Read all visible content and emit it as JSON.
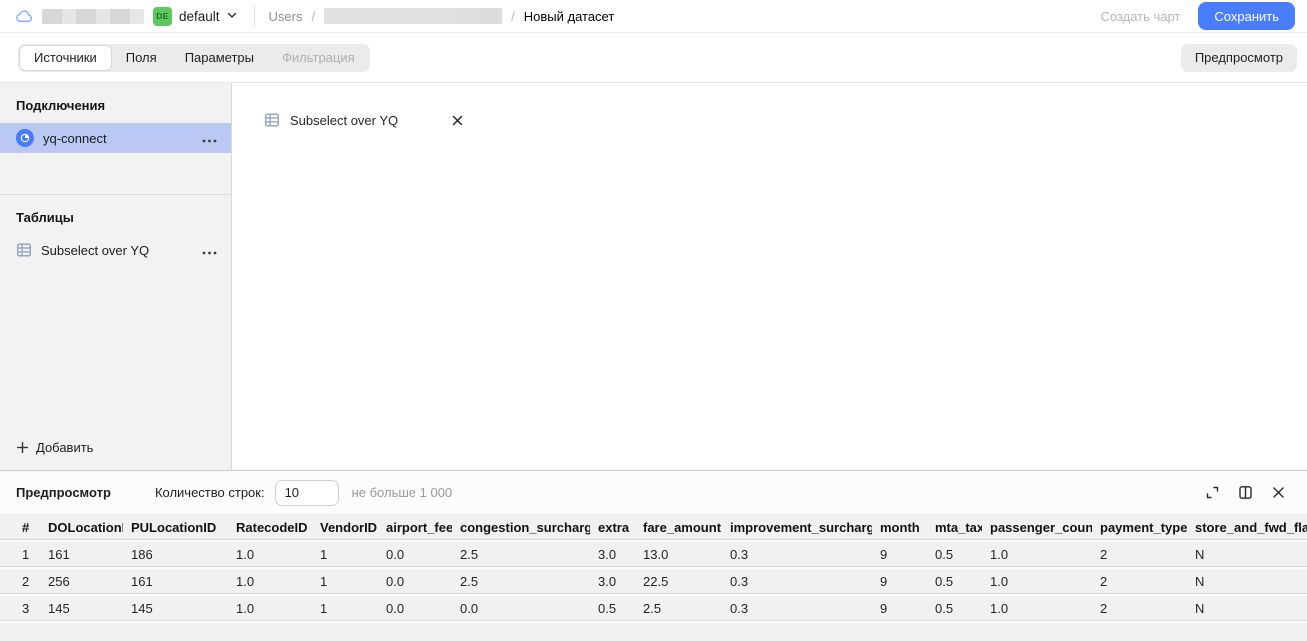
{
  "topbar": {
    "workspace": {
      "env_badge": "DE",
      "folder": "default"
    },
    "breadcrumb": {
      "root": "Users",
      "separator": "/",
      "current": "Новый датасет"
    },
    "actions": {
      "create_chart": "Создать чарт",
      "save": "Сохранить"
    }
  },
  "tabs": {
    "sources": "Источники",
    "fields": "Поля",
    "parameters": "Параметры",
    "filtering": "Фильтрация",
    "active": "Источники",
    "preview_toggle": "Предпросмотр"
  },
  "sidebar": {
    "connections_title": "Подключения",
    "connections": [
      {
        "name": "yq-connect",
        "selected": true
      }
    ],
    "tables_title": "Таблицы",
    "tables": [
      {
        "name": "Subselect over YQ"
      }
    ],
    "add_label": "Добавить"
  },
  "canvas": {
    "source_chip": "Subselect over YQ"
  },
  "preview": {
    "title": "Предпросмотр",
    "rows_label": "Количество строк:",
    "rows_value": "10",
    "rows_hint": "не больше 1 000",
    "table": {
      "columns": [
        "#",
        "DOLocationID",
        "PULocationID",
        "RatecodeID",
        "VendorID",
        "airport_fee",
        "congestion_surcharge",
        "extra",
        "fare_amount",
        "improvement_surcharge",
        "month",
        "mta_tax",
        "passenger_count",
        "payment_type",
        "store_and_fwd_flag"
      ],
      "rows": [
        [
          "1",
          "161",
          "186",
          "1.0",
          "1",
          "0.0",
          "2.5",
          "3.0",
          "13.0",
          "0.3",
          "9",
          "0.5",
          "1.0",
          "2",
          "N"
        ],
        [
          "2",
          "256",
          "161",
          "1.0",
          "1",
          "0.0",
          "2.5",
          "3.0",
          "22.5",
          "0.3",
          "9",
          "0.5",
          "1.0",
          "2",
          "N"
        ],
        [
          "3",
          "145",
          "145",
          "1.0",
          "1",
          "0.0",
          "0.0",
          "0.5",
          "2.5",
          "0.3",
          "9",
          "0.5",
          "1.0",
          "2",
          "N"
        ]
      ]
    }
  },
  "colors": {
    "accent_blue": "#4a7dfb",
    "selected_connection_bg": "#b9c9f4",
    "env_badge_green": "#5fc75f",
    "connection_icon_blue": "#4a7cf8"
  }
}
